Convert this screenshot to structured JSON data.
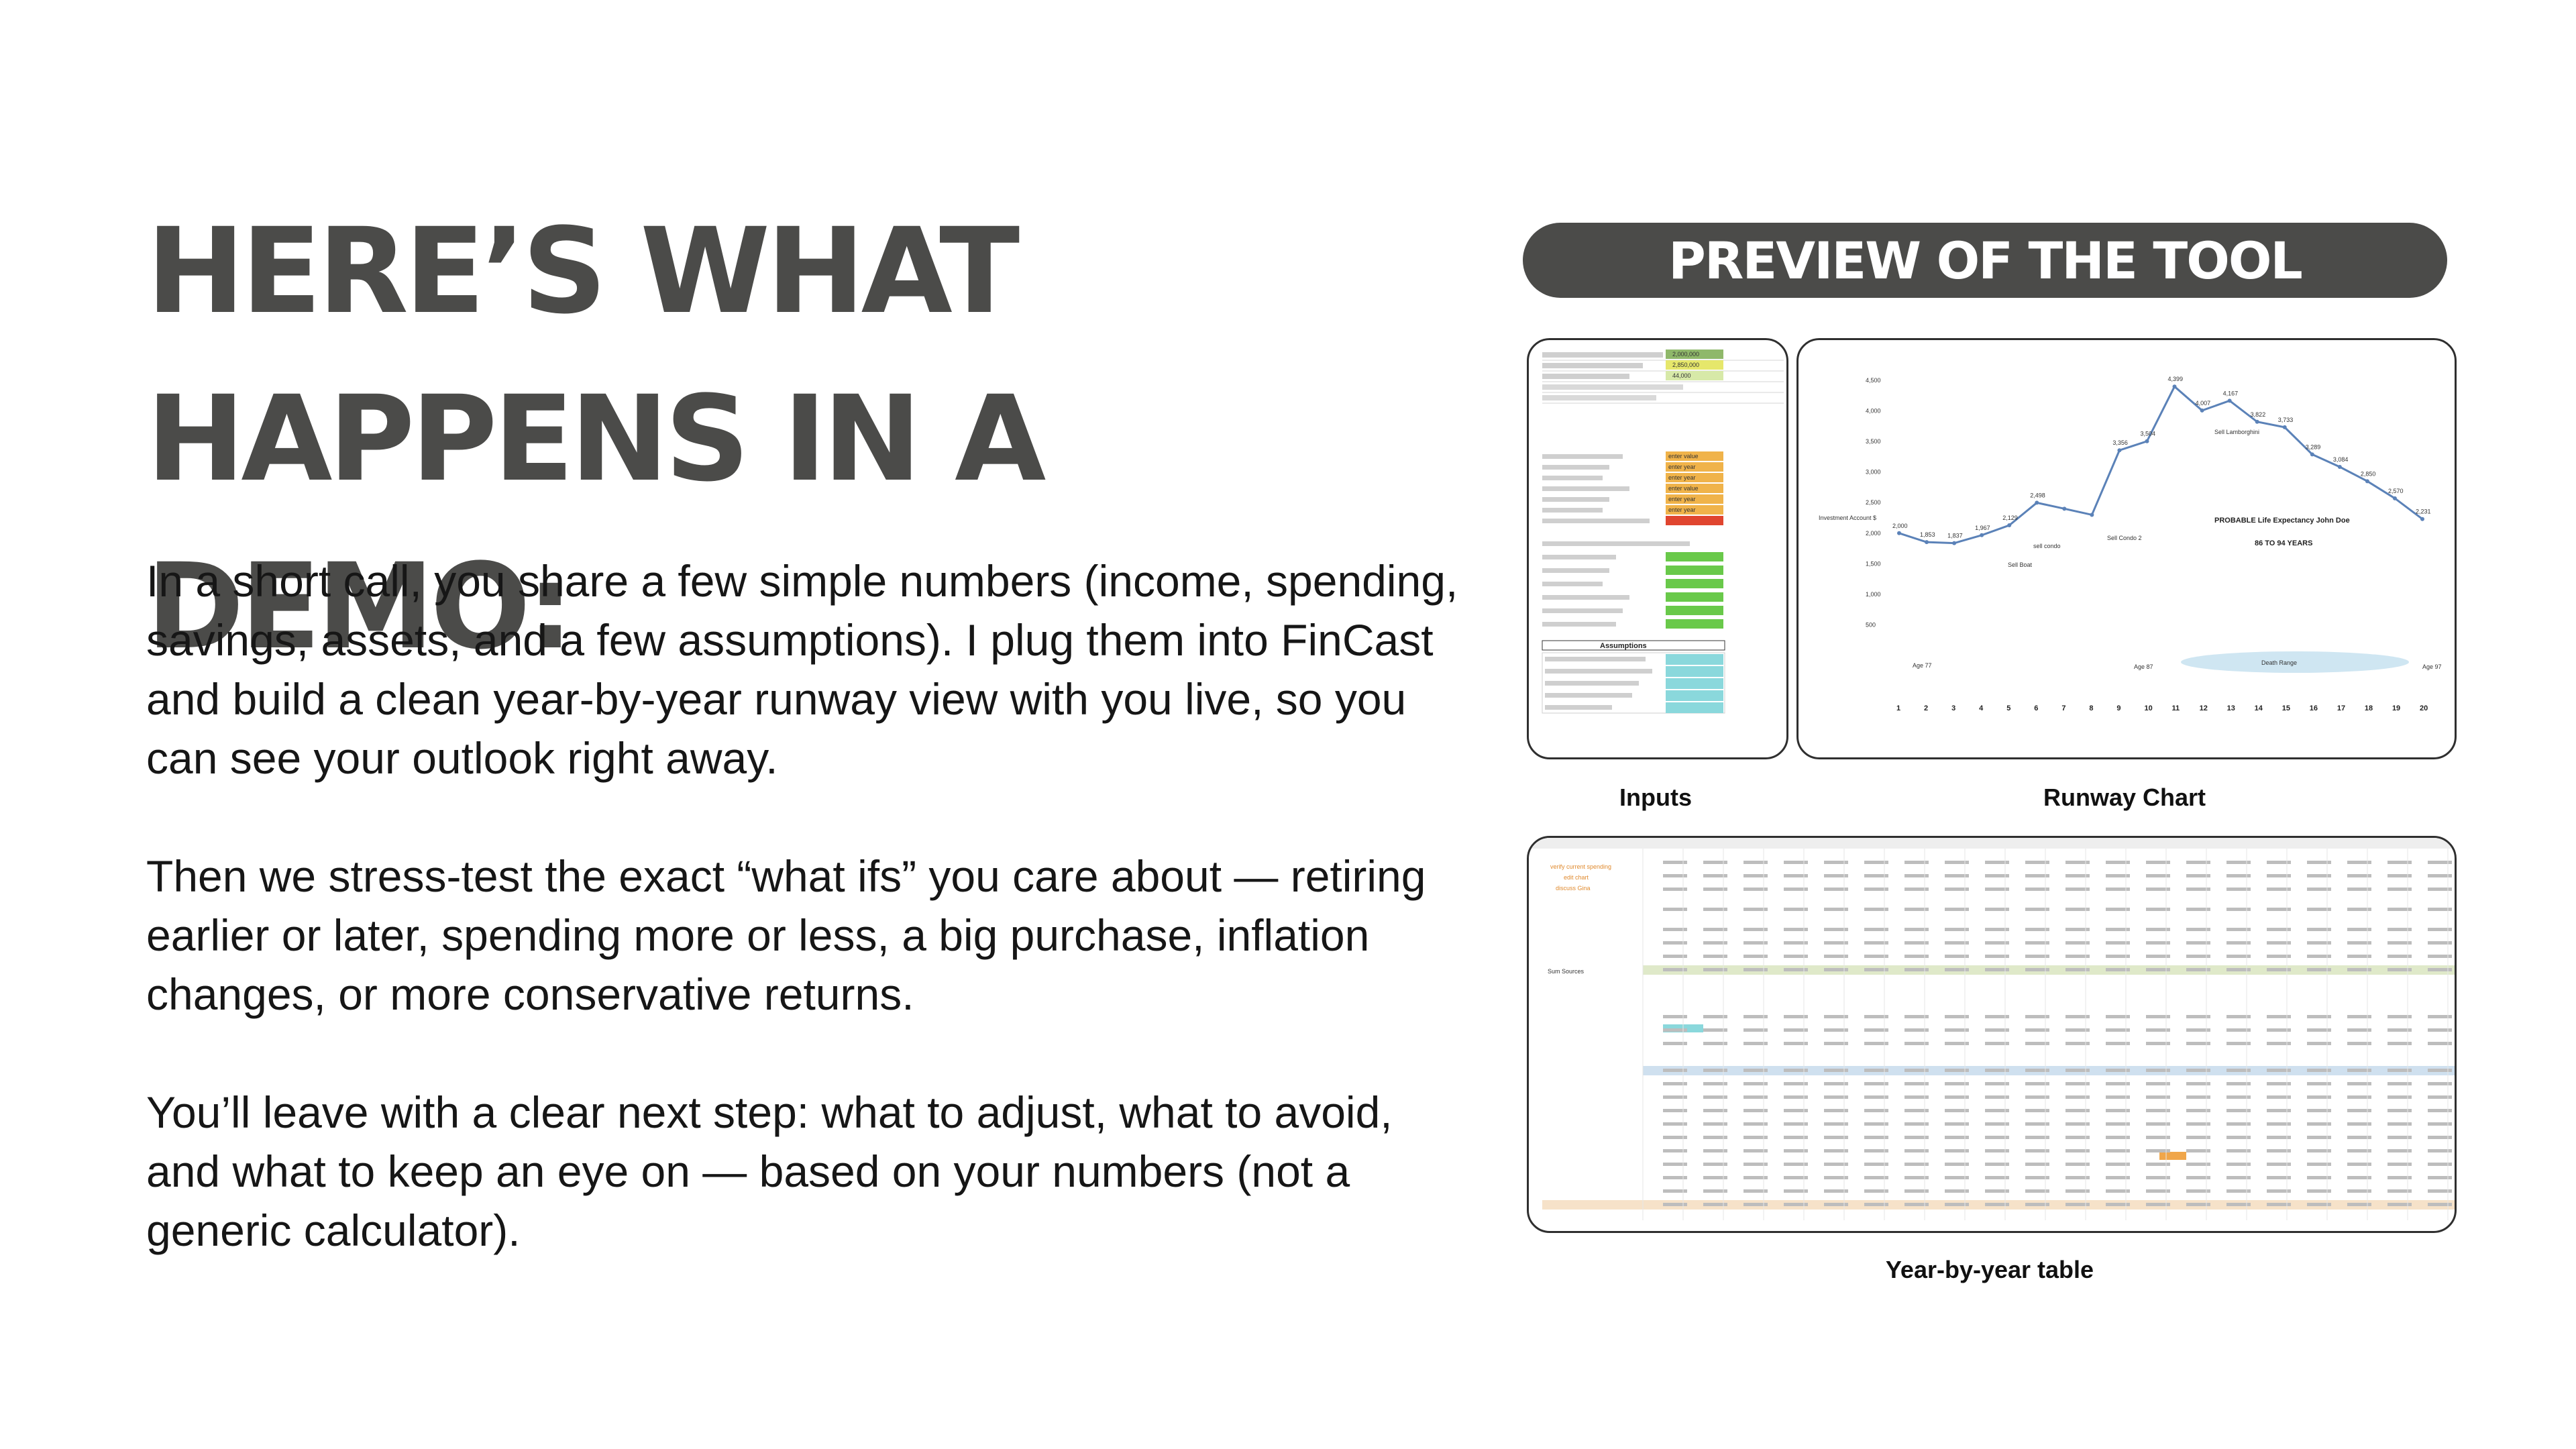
{
  "headline": {
    "line1": "HERE’S WHAT",
    "line2": "HAPPENS IN A DEMO:"
  },
  "paragraphs": [
    "In a short call, you share a few simple numbers (income, spending, savings, assets, and a few assumptions). I plug them into FinCast and build a clean year-by-year runway view with you live, so you can see your outlook right away.",
    "Then we stress-test the exact “what ifs” you care about — retiring earlier or later, spending more or less, a big purchase, inflation changes, or more conservative returns.",
    "You’ll leave with a clear next step: what to adjust, what to avoid, and what to keep an eye on — based on your numbers (not a generic calculator)."
  ],
  "preview": {
    "label": "PREVIEW OF THE TOOL",
    "captions": {
      "inputs": "Inputs",
      "chart": "Runway Chart",
      "table": "Year-by-year table"
    }
  },
  "thumb_inputs": {
    "value_cells": [
      "2,000,000",
      "2,850,000",
      "44,000",
      "enter value",
      "enter year",
      "enter year",
      "enter value",
      "enter year",
      "enter year"
    ],
    "section_title": "Assumptions"
  },
  "thumb_chart": {
    "x_ticks": [
      "1",
      "2",
      "3",
      "4",
      "5",
      "6",
      "7",
      "8",
      "9",
      "10",
      "11",
      "12",
      "13",
      "14",
      "15",
      "16",
      "17",
      "18",
      "19",
      "20"
    ],
    "y_ticks": [
      "4,500",
      "4,000",
      "3,500",
      "3,000",
      "2,500",
      "2,000",
      "1,500",
      "1,000",
      "500"
    ],
    "values": [
      2000,
      1853,
      1837,
      1967,
      2129,
      2498,
      2400,
      2300,
      3356,
      3504,
      4399,
      4007,
      4167,
      3822,
      3733,
      3289,
      3084,
      2850,
      2570,
      2231
    ],
    "point_labels": [
      "2,000",
      "1,853",
      "1,837",
      "1,967",
      "2,129",
      "2,498",
      "",
      "",
      "3,356",
      "3,504",
      "4,399",
      "4,007",
      "4,167",
      "3,822",
      "3,733",
      "3,289",
      "3,084",
      "2,850",
      "2,570",
      "2,231"
    ],
    "annotations": [
      "Sell Lamborghini",
      "PROBABLE Life Expectancy John Doe",
      "86 TO 94 YEARS",
      "Sell Boat",
      "sell condo",
      "Sell Condo 2",
      "Death Range"
    ],
    "ylabel": "Investment Account $",
    "age_labels": [
      "Age 77",
      "Age 87",
      "Age 97"
    ],
    "line_color": "#5b82b8"
  },
  "thumb_table": {
    "notes": [
      "verify current spending",
      "edit chart",
      "discuss Gina"
    ],
    "row_label_total": "Sum Sources"
  }
}
